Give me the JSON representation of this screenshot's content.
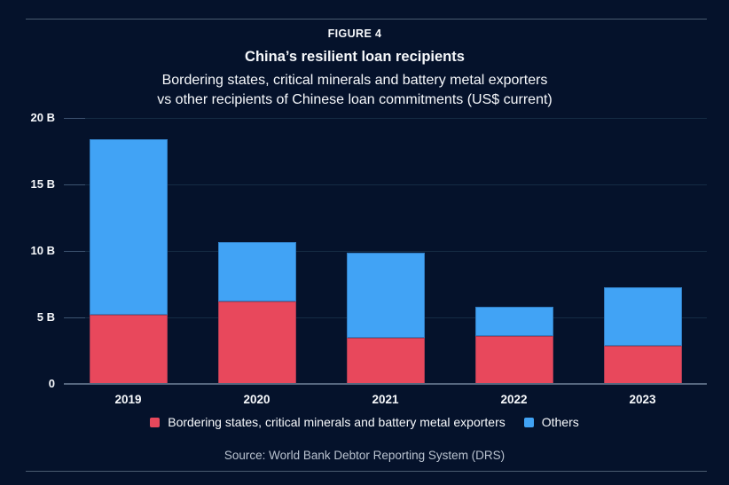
{
  "page": {
    "figure_label": "FIGURE 4",
    "title": "China’s resilient loan recipients",
    "subtitle_line1": "Bordering states, critical minerals and battery metal exporters",
    "subtitle_line2": "vs other recipients of Chinese loan commitments (US$ current)",
    "source": "Source: World Bank Debtor Reporting System (DRS)"
  },
  "colors": {
    "background": "#05122B",
    "bordering": "#E8485C",
    "others": "#41A3F5",
    "text": "#F7F9FC",
    "muted_text": "#B9C2CF",
    "gridline": "#152C44",
    "tick": "#3E5471",
    "baseline": "#56677F",
    "rule": "#4A5B70"
  },
  "chart_data": {
    "type": "bar",
    "stacked": true,
    "title": "China’s resilient loan recipients",
    "subtitle": "Bordering states, critical minerals and battery metal exporters vs other recipients of Chinese loan commitments (US$ current)",
    "unit": "US$ billions (current)",
    "categories": [
      "2019",
      "2020",
      "2021",
      "2022",
      "2023"
    ],
    "series": [
      {
        "name": "Bordering states, critical minerals and battery metal exporters",
        "color_key": "bordering",
        "values": [
          5.2,
          6.2,
          3.5,
          3.6,
          2.9
        ]
      },
      {
        "name": "Others",
        "color_key": "others",
        "values": [
          13.2,
          4.5,
          6.4,
          2.2,
          4.4
        ]
      }
    ],
    "totals": [
      18.4,
      10.7,
      9.9,
      5.8,
      7.3
    ],
    "ylim": [
      0,
      20
    ],
    "yticks": [
      {
        "value": 0,
        "label": "0"
      },
      {
        "value": 5,
        "label": "5 B"
      },
      {
        "value": 10,
        "label": "10 B"
      },
      {
        "value": 15,
        "label": "15 B"
      },
      {
        "value": 20,
        "label": "20 B"
      }
    ],
    "grid": true,
    "legend_position": "bottom"
  }
}
